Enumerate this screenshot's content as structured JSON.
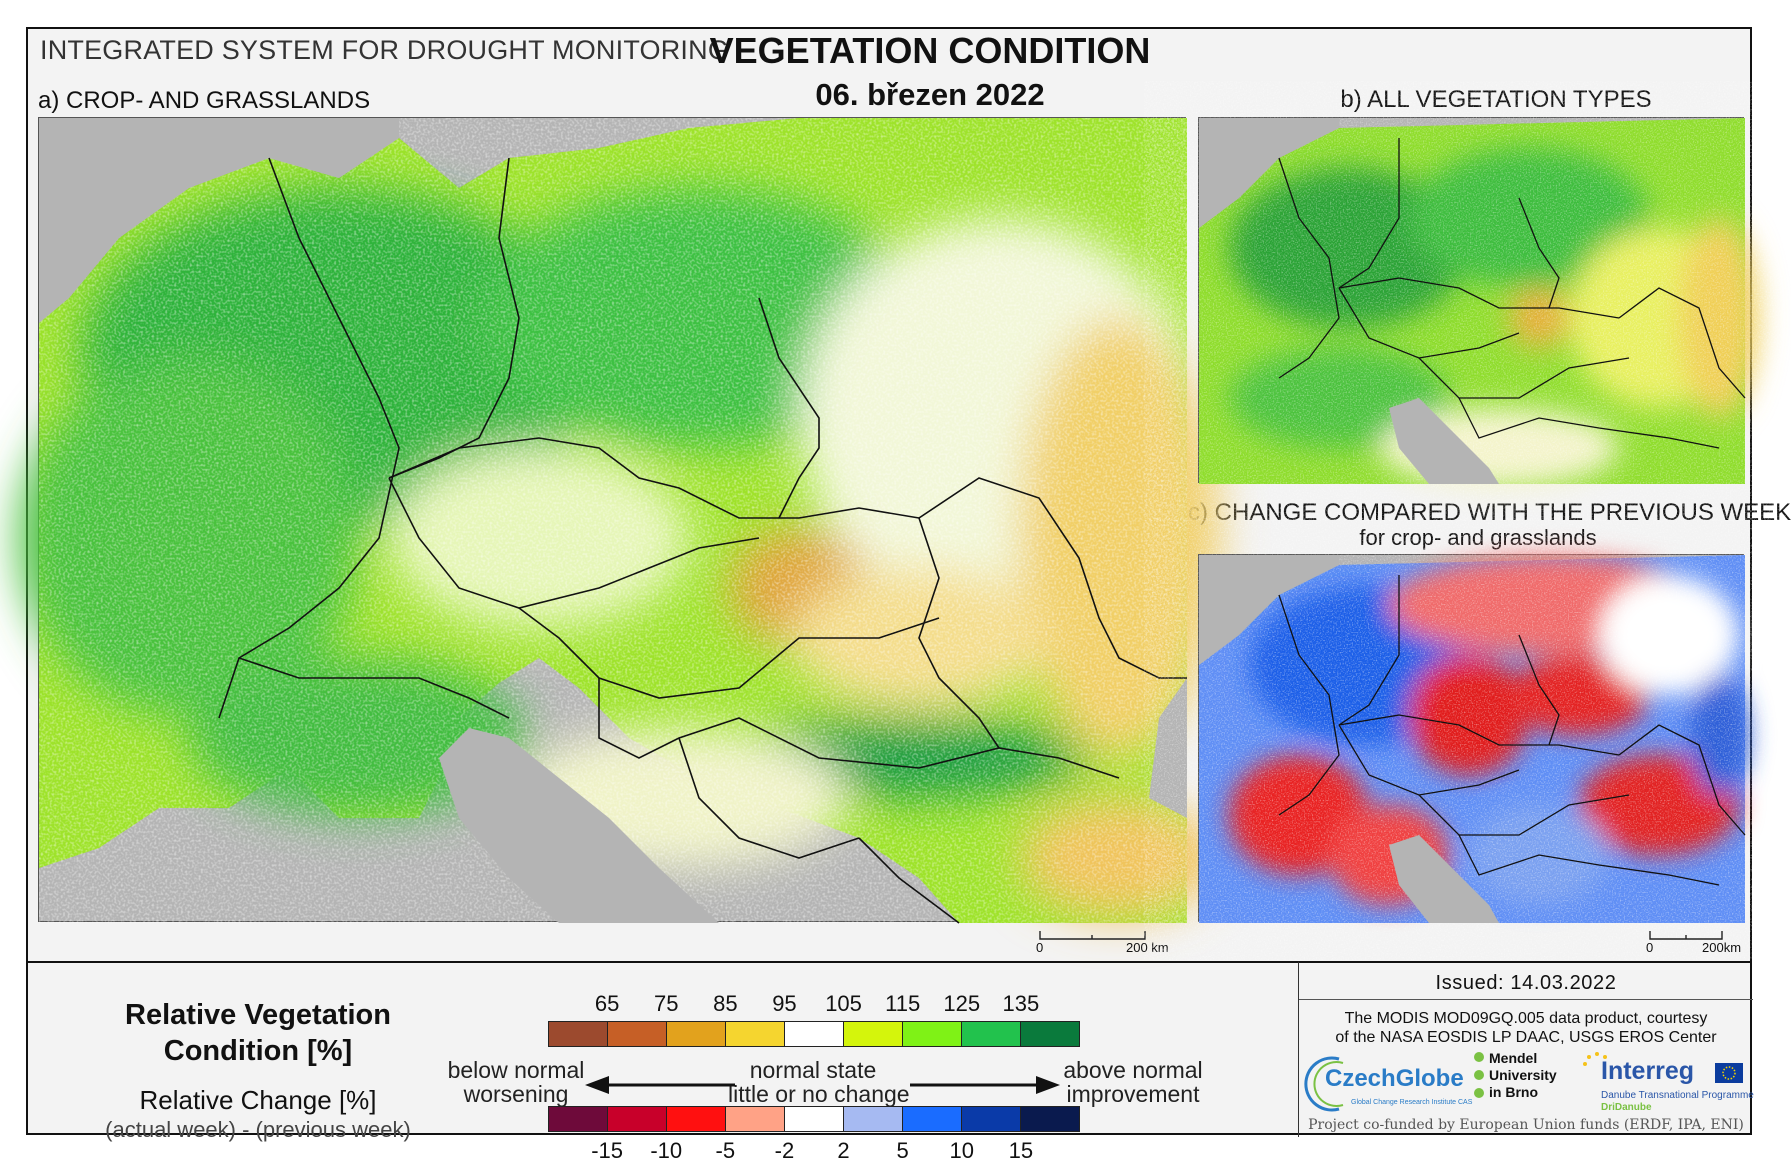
{
  "header": {
    "system_title": "INTEGRATED SYSTEM FOR DROUGHT MONITORING",
    "main_title": "VEGETATION CONDITION",
    "date": "06. březen 2022"
  },
  "panels": {
    "a_title": "a) CROP- AND GRASSLANDS",
    "b_title": "b) ALL VEGETATION TYPES",
    "c_title": "c) CHANGE COMPARED WITH THE PREVIOUS WEEK",
    "c_subtitle": "for crop- and grasslands"
  },
  "scale_bars": {
    "a": {
      "zero": "0",
      "max": "200 km"
    },
    "b": {
      "zero": "0",
      "max": "200km"
    }
  },
  "legend": {
    "title_line1": "Relative Vegetation",
    "title_line2": "Condition [%]",
    "change_title": "Relative Change [%]",
    "change_subtitle": "(actual week) - (previous week)",
    "rvc_ticks": [
      "65",
      "75",
      "85",
      "95",
      "105",
      "115",
      "125",
      "135"
    ],
    "rvc_colors": [
      "#9c4a2e",
      "#c65f26",
      "#e2a21d",
      "#f5d52f",
      "#ffffff",
      "#d4f50c",
      "#7ff216",
      "#22c24d",
      "#0a7a3c"
    ],
    "change_ticks": [
      "-15",
      "-10",
      "-5",
      "-2",
      "2",
      "5",
      "10",
      "15"
    ],
    "change_colors": [
      "#6e0a3a",
      "#c8002a",
      "#ff1010",
      "#ffa286",
      "#ffffff",
      "#a6baf2",
      "#1a6cff",
      "#0a3aa8",
      "#0a1a4e"
    ],
    "below_normal": "below normal",
    "worsening": "worsening",
    "normal_state": "normal state",
    "little_change": "little or no change",
    "above_normal": "above normal",
    "improvement": "improvement"
  },
  "credits": {
    "issued": "Issued: 14.03.2022",
    "line1": "The MODIS MOD09GQ.005 data product, courtesy",
    "line2": "of the NASA EOSDIS LP DAAC, USGS EROS Center",
    "czechglobe": "CzechGlobe",
    "czechglobe_sub": "Global Change Research Institute CAS",
    "mendel_1": "Mendel",
    "mendel_2": "University",
    "mendel_3": "in Brno",
    "interreg": "Interreg",
    "interreg_sub1": "Danube Transnational Programme",
    "interreg_sub2": "DriDanube",
    "funding": "Project co-funded by European Union funds (ERDF, IPA, ENI)"
  }
}
